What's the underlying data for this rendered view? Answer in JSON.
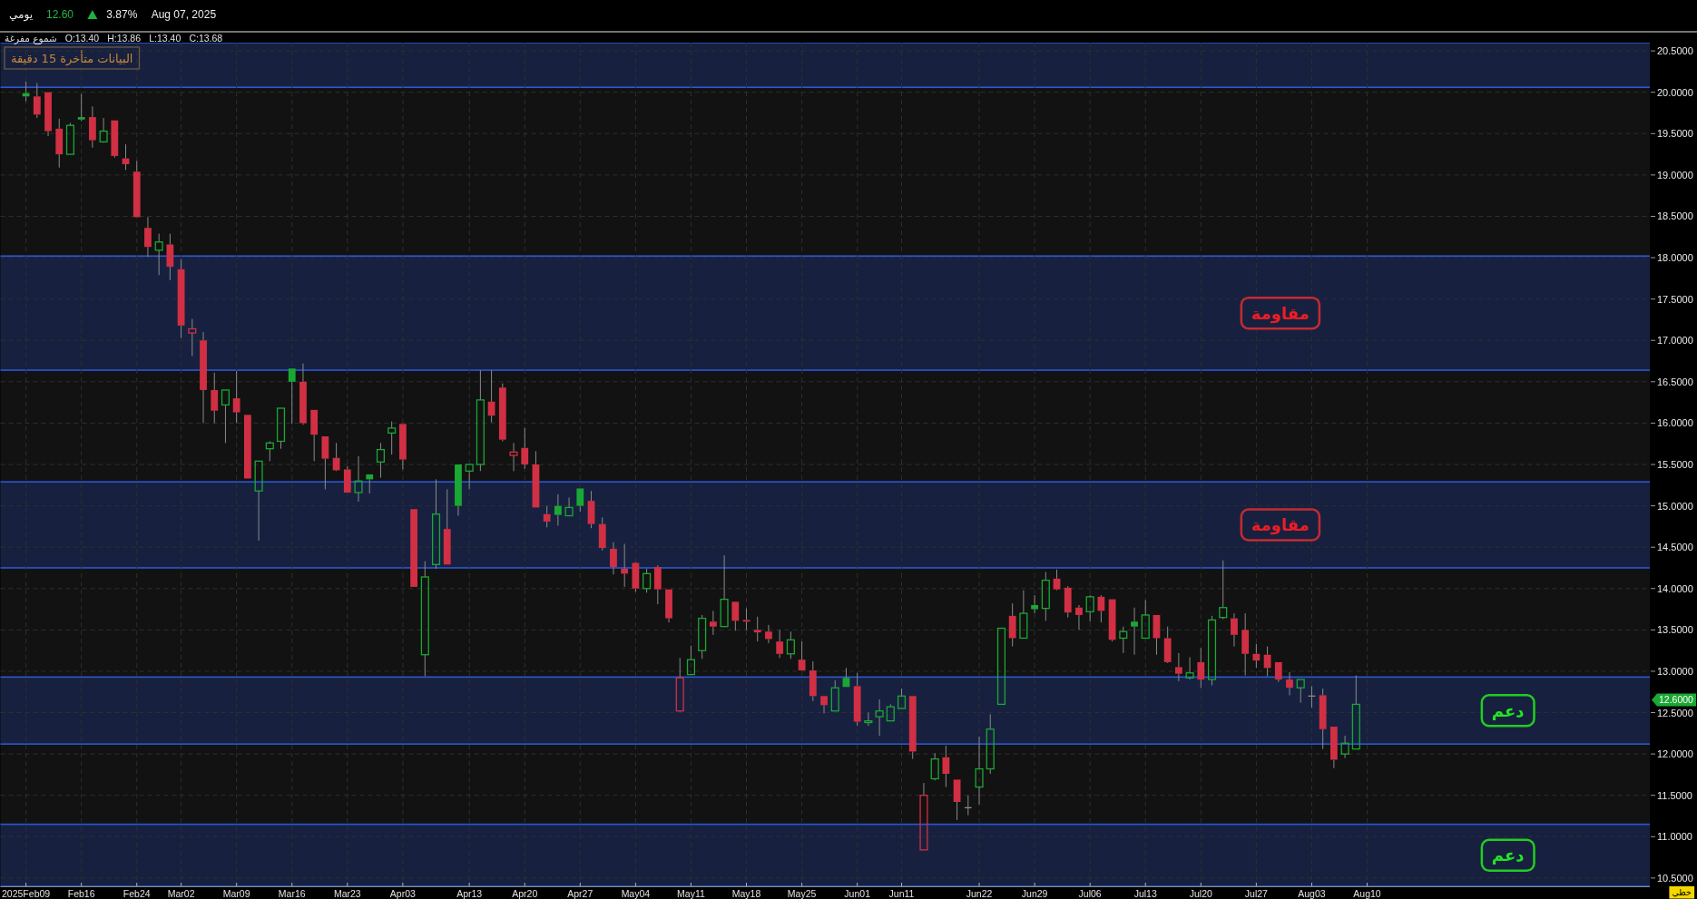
{
  "chart_data": {
    "type": "candlestick",
    "title": "يومي",
    "subtitle": "شموع مفرغة",
    "categories": [
      "2025Feb09",
      null,
      null,
      null,
      null,
      "Feb16",
      null,
      null,
      null,
      null,
      "Feb24",
      null,
      null,
      null,
      "Mar02",
      null,
      null,
      null,
      null,
      "Mar09",
      null,
      null,
      null,
      null,
      "Mar16",
      null,
      null,
      null,
      null,
      "Mar23",
      null,
      null,
      null,
      null,
      "Apr03",
      null,
      null,
      null,
      null,
      null,
      "Apr13",
      null,
      null,
      null,
      null,
      "Apr20",
      null,
      null,
      null,
      null,
      "Apr27",
      null,
      null,
      null,
      null,
      "May04",
      null,
      null,
      null,
      null,
      "May11",
      null,
      null,
      null,
      null,
      "May18",
      null,
      null,
      null,
      null,
      "May25",
      null,
      null,
      null,
      null,
      "Jun01",
      null,
      null,
      null,
      "Jun11",
      null,
      null,
      null,
      null,
      null,
      null,
      "Jun22",
      null,
      null,
      null,
      null,
      "Jun29",
      null,
      null,
      null,
      null,
      "Jul06",
      null,
      null,
      null,
      null,
      "Jul13",
      null,
      null,
      null,
      null,
      "Jul20",
      null,
      null,
      null,
      null,
      "Jul27",
      null,
      null,
      null,
      null,
      "Aug03",
      null,
      null,
      null,
      null,
      "Aug10",
      null,
      null,
      null,
      null,
      null,
      null,
      null,
      null,
      null,
      null,
      null,
      null,
      null,
      null,
      null,
      null,
      null,
      null,
      null,
      null,
      null,
      null,
      null,
      null,
      null
    ],
    "ohlc": [
      [
        19.99,
        20.13,
        19.89,
        19.95
      ],
      [
        19.95,
        20.11,
        19.69,
        19.73
      ],
      [
        20.0,
        20.0,
        19.47,
        19.53
      ],
      [
        19.56,
        19.68,
        19.09,
        19.25
      ],
      [
        19.25,
        19.63,
        19.25,
        19.6
      ],
      [
        19.7,
        19.98,
        19.65,
        19.67
      ],
      [
        19.7,
        19.83,
        19.33,
        19.42
      ],
      [
        19.4,
        19.69,
        19.39,
        19.53
      ],
      [
        19.66,
        19.66,
        19.21,
        19.23
      ],
      [
        19.2,
        19.37,
        19.06,
        19.13
      ],
      [
        19.04,
        19.17,
        18.49,
        18.49
      ],
      [
        18.36,
        18.49,
        18.01,
        18.13
      ],
      [
        18.09,
        18.29,
        17.79,
        18.19
      ],
      [
        18.16,
        18.29,
        17.73,
        17.89
      ],
      [
        17.86,
        17.98,
        17.03,
        17.18
      ],
      [
        17.09,
        17.26,
        16.81,
        17.14
      ],
      [
        17.0,
        17.1,
        16.0,
        16.4
      ],
      [
        16.4,
        16.61,
        16.0,
        16.15
      ],
      [
        16.22,
        16.4,
        15.76,
        16.4
      ],
      [
        16.3,
        16.63,
        16.0,
        16.13
      ],
      [
        16.1,
        16.1,
        15.33,
        15.33
      ],
      [
        15.18,
        15.54,
        14.58,
        15.54
      ],
      [
        15.69,
        15.78,
        15.54,
        15.76
      ],
      [
        15.78,
        16.18,
        15.69,
        16.18
      ],
      [
        16.66,
        16.66,
        15.99,
        16.5
      ],
      [
        16.5,
        16.72,
        15.98,
        16.0
      ],
      [
        16.16,
        16.16,
        15.54,
        15.86
      ],
      [
        15.84,
        15.84,
        15.2,
        15.57
      ],
      [
        15.58,
        15.76,
        15.42,
        15.43
      ],
      [
        15.44,
        15.48,
        15.16,
        15.16
      ],
      [
        15.16,
        15.6,
        15.05,
        15.3
      ],
      [
        15.38,
        15.38,
        15.15,
        15.32
      ],
      [
        15.53,
        15.76,
        15.34,
        15.68
      ],
      [
        15.88,
        16.02,
        15.62,
        15.94
      ],
      [
        15.99,
        15.99,
        15.44,
        15.56
      ],
      [
        14.96,
        14.96,
        14.02,
        14.02
      ],
      [
        13.2,
        14.33,
        12.94,
        14.14
      ],
      [
        14.29,
        15.32,
        14.24,
        14.9
      ],
      [
        14.72,
        15.2,
        14.29,
        14.29
      ],
      [
        15.5,
        15.5,
        14.88,
        15.0
      ],
      [
        15.42,
        15.5,
        15.2,
        15.5
      ],
      [
        15.5,
        16.64,
        15.42,
        16.28
      ],
      [
        16.26,
        16.64,
        16.01,
        16.09
      ],
      [
        16.43,
        16.48,
        15.78,
        15.8
      ],
      [
        15.61,
        15.76,
        15.42,
        15.65
      ],
      [
        15.7,
        15.94,
        15.45,
        15.5
      ],
      [
        15.5,
        15.66,
        14.98,
        14.98
      ],
      [
        14.9,
        15.0,
        14.74,
        14.81
      ],
      [
        15.0,
        15.14,
        14.76,
        14.89
      ],
      [
        14.88,
        15.1,
        14.88,
        14.98
      ],
      [
        15.21,
        15.21,
        14.93,
        15.0
      ],
      [
        15.06,
        15.18,
        14.73,
        14.78
      ],
      [
        14.78,
        14.86,
        14.46,
        14.49
      ],
      [
        14.48,
        14.56,
        14.17,
        14.26
      ],
      [
        14.24,
        14.54,
        14.02,
        14.18
      ],
      [
        14.31,
        14.32,
        13.96,
        14.0
      ],
      [
        14.0,
        14.24,
        13.95,
        14.18
      ],
      [
        14.26,
        14.28,
        13.81,
        13.99
      ],
      [
        13.99,
        13.99,
        13.59,
        13.64
      ],
      [
        12.52,
        13.16,
        12.51,
        12.92
      ],
      [
        12.96,
        13.31,
        12.96,
        13.14
      ],
      [
        13.25,
        13.68,
        13.15,
        13.64
      ],
      [
        13.6,
        13.73,
        13.44,
        13.54
      ],
      [
        13.54,
        14.4,
        13.54,
        13.87
      ],
      [
        13.84,
        13.84,
        13.49,
        13.61
      ],
      [
        13.62,
        13.76,
        13.5,
        13.6
      ],
      [
        13.5,
        13.66,
        13.36,
        13.47
      ],
      [
        13.48,
        13.56,
        13.34,
        13.39
      ],
      [
        13.36,
        13.5,
        13.16,
        13.21
      ],
      [
        13.21,
        13.48,
        13.15,
        13.38
      ],
      [
        13.14,
        13.36,
        13.01,
        13.01
      ],
      [
        13.01,
        13.12,
        12.64,
        12.7
      ],
      [
        12.7,
        12.7,
        12.49,
        12.59
      ],
      [
        12.52,
        12.89,
        12.52,
        12.8
      ],
      [
        12.92,
        13.04,
        12.81,
        12.81
      ],
      [
        12.82,
        12.98,
        12.34,
        12.39
      ],
      [
        12.38,
        12.5,
        12.34,
        12.4
      ],
      [
        12.45,
        12.66,
        12.22,
        12.52
      ],
      [
        12.4,
        12.6,
        12.4,
        12.57
      ],
      [
        12.55,
        12.79,
        12.55,
        12.7
      ],
      [
        12.7,
        12.7,
        11.94,
        12.03
      ],
      [
        10.84,
        11.65,
        10.84,
        11.5
      ],
      [
        11.7,
        12.01,
        11.68,
        11.94
      ],
      [
        11.96,
        12.1,
        11.6,
        11.76
      ],
      [
        11.69,
        11.69,
        11.2,
        11.42
      ],
      [
        11.35,
        11.5,
        11.26,
        11.35
      ],
      [
        11.6,
        12.21,
        11.39,
        11.82
      ],
      [
        11.82,
        12.48,
        11.76,
        12.3
      ],
      [
        12.6,
        13.52,
        12.6,
        13.52
      ],
      [
        13.67,
        13.82,
        13.3,
        13.4
      ],
      [
        13.4,
        13.98,
        13.4,
        13.7
      ],
      [
        13.8,
        13.92,
        13.7,
        13.75
      ],
      [
        13.76,
        14.2,
        13.61,
        14.1
      ],
      [
        14.12,
        14.23,
        13.98,
        13.99
      ],
      [
        14.01,
        14.03,
        13.65,
        13.71
      ],
      [
        13.77,
        13.8,
        13.5,
        13.68
      ],
      [
        13.72,
        13.92,
        13.6,
        13.9
      ],
      [
        13.9,
        13.92,
        13.59,
        13.73
      ],
      [
        13.87,
        13.87,
        13.36,
        13.38
      ],
      [
        13.4,
        13.54,
        13.22,
        13.48
      ],
      [
        13.6,
        13.77,
        13.2,
        13.54
      ],
      [
        13.4,
        13.86,
        13.4,
        13.68
      ],
      [
        13.68,
        13.68,
        13.2,
        13.4
      ],
      [
        13.4,
        13.54,
        13.1,
        13.11
      ],
      [
        13.05,
        13.22,
        12.88,
        12.97
      ],
      [
        12.92,
        13.17,
        12.9,
        12.98
      ],
      [
        13.11,
        13.28,
        12.8,
        12.9
      ],
      [
        12.9,
        13.67,
        12.83,
        13.62
      ],
      [
        13.65,
        14.34,
        13.63,
        13.77
      ],
      [
        13.64,
        13.7,
        13.3,
        13.44
      ],
      [
        13.5,
        13.7,
        12.95,
        13.21
      ],
      [
        13.21,
        13.33,
        13.04,
        13.13
      ],
      [
        13.2,
        13.3,
        12.94,
        13.04
      ],
      [
        13.11,
        13.11,
        12.87,
        12.9
      ],
      [
        12.9,
        12.99,
        12.71,
        12.8
      ],
      [
        12.8,
        12.9,
        12.62,
        12.9
      ],
      [
        12.7,
        12.82,
        12.56,
        12.7
      ],
      [
        12.71,
        12.79,
        12.06,
        12.3
      ],
      [
        12.33,
        12.33,
        11.83,
        11.93
      ],
      [
        12.0,
        12.22,
        11.95,
        12.13
      ],
      [
        12.06,
        12.95,
        12.06,
        12.6
      ],
      null,
      null,
      null,
      null,
      null,
      null,
      null,
      null,
      null,
      null,
      null,
      null,
      null,
      null,
      null,
      null,
      null,
      null,
      null,
      null,
      null,
      null,
      null,
      null,
      null,
      null
    ],
    "colors": [
      "#1aa834",
      "#d12f43",
      "#d12f43",
      "#d12f43",
      "#1aa834",
      "#1aa834",
      "#d12f43",
      "#1aa834",
      "#d12f43",
      "#d12f43",
      "#d12f43",
      "#d12f43",
      "#1aa834",
      "#d12f43",
      "#d12f43",
      "#d12f43",
      "#d12f43",
      "#d12f43",
      "#1aa834",
      "#d12f43",
      "#d12f43",
      "#1aa834",
      "#1aa834",
      "#1aa834",
      "#1aa834",
      "#d12f43",
      "#d12f43",
      "#d12f43",
      "#d12f43",
      "#d12f43",
      "#1aa834",
      "#1aa834",
      "#1aa834",
      "#1aa834",
      "#d12f43",
      "#d12f43",
      "#1aa834",
      "#1aa834",
      "#d12f43",
      "#1aa834",
      "#1aa834",
      "#1aa834",
      "#d12f43",
      "#d12f43",
      "#d12f43",
      "#d12f43",
      "#d12f43",
      "#d12f43",
      "#1aa834",
      "#1aa834",
      "#1aa834",
      "#d12f43",
      "#d12f43",
      "#d12f43",
      "#d12f43",
      "#d12f43",
      "#1aa834",
      "#d12f43",
      "#d12f43",
      "#d12f43",
      "#1aa834",
      "#1aa834",
      "#d12f43",
      "#1aa834",
      "#d12f43",
      "#d12f43",
      "#d12f43",
      "#d12f43",
      "#d12f43",
      "#1aa834",
      "#d12f43",
      "#d12f43",
      "#d12f43",
      "#1aa834",
      "#1aa834",
      "#d12f43",
      "#1aa834",
      "#1aa834",
      "#1aa834",
      "#1aa834",
      "#d12f43",
      "#d12f43",
      "#1aa834",
      "#d12f43",
      "#d12f43",
      "#8c8c8c",
      "#1aa834",
      "#1aa834",
      "#1aa834",
      "#d12f43",
      "#1aa834",
      "#1aa834",
      "#1aa834",
      "#d12f43",
      "#d12f43",
      "#d12f43",
      "#1aa834",
      "#d12f43",
      "#d12f43",
      "#1aa834",
      "#1aa834",
      "#1aa834",
      "#d12f43",
      "#d12f43",
      "#d12f43",
      "#1aa834",
      "#d12f43",
      "#1aa834",
      "#1aa834",
      "#d12f43",
      "#d12f43",
      "#d12f43",
      "#d12f43",
      "#d12f43",
      "#d12f43",
      "#1aa834",
      "#8c8c8c",
      "#d12f43",
      "#d12f43",
      "#1aa834",
      "#1aa834",
      null,
      null,
      null,
      null,
      null,
      null,
      null,
      null,
      null,
      null,
      null,
      null,
      null,
      null,
      null,
      null,
      null,
      null,
      null,
      null,
      null,
      null,
      null,
      null,
      null,
      null
    ],
    "ylim": [
      10.4,
      20.6
    ],
    "yticks": [
      {
        "value": 10.5,
        "label": "10.5000"
      },
      {
        "value": 11,
        "label": "11.0000"
      },
      {
        "value": 11.5,
        "label": "11.5000"
      },
      {
        "value": 12,
        "label": "12.0000"
      },
      {
        "value": 12.5,
        "label": "12.5000"
      },
      {
        "value": 13,
        "label": "13.0000"
      },
      {
        "value": 13.5,
        "label": "13.5000"
      },
      {
        "value": 14,
        "label": "14.0000"
      },
      {
        "value": 14.5,
        "label": "14.5000"
      },
      {
        "value": 15,
        "label": "15.0000"
      },
      {
        "value": 15.5,
        "label": "15.5000"
      },
      {
        "value": 16,
        "label": "16.0000"
      },
      {
        "value": 16.5,
        "label": "16.5000"
      },
      {
        "value": 17,
        "label": "17.0000"
      },
      {
        "value": 17.5,
        "label": "17.5000"
      },
      {
        "value": 18,
        "label": "18.0000"
      },
      {
        "value": 18.5,
        "label": "18.5000"
      },
      {
        "value": 19,
        "label": "19.0000"
      },
      {
        "value": 19.5,
        "label": "19.5000"
      },
      {
        "value": 20,
        "label": "20.0000"
      },
      {
        "value": 20.5,
        "label": "20.5000"
      }
    ],
    "grid": true,
    "bands": [
      {
        "axis": "y",
        "from": 20.06,
        "to": 20.6,
        "color": "#17213f"
      },
      {
        "axis": "y",
        "from": 16.64,
        "to": 18.02,
        "label": "مقاومة",
        "color": "#17213f"
      },
      {
        "axis": "y",
        "from": 14.25,
        "to": 15.29,
        "label": "مقاومة",
        "color": "#17213f"
      },
      {
        "axis": "y",
        "from": 12.12,
        "to": 12.93,
        "label": "دعم",
        "color": "#17213f"
      },
      {
        "axis": "y",
        "from": 10.4,
        "to": 11.15,
        "label": "دعم",
        "color": "#17213f"
      }
    ],
    "annotations": [
      "12.60",
      "3.87%",
      "Aug 07, 2025",
      "O:13.40",
      "H:13.86",
      "L:13.40",
      "C:13.68",
      "البيانات متأخرة 15 دقيقة",
      "12.6000",
      "خطي"
    ]
  }
}
